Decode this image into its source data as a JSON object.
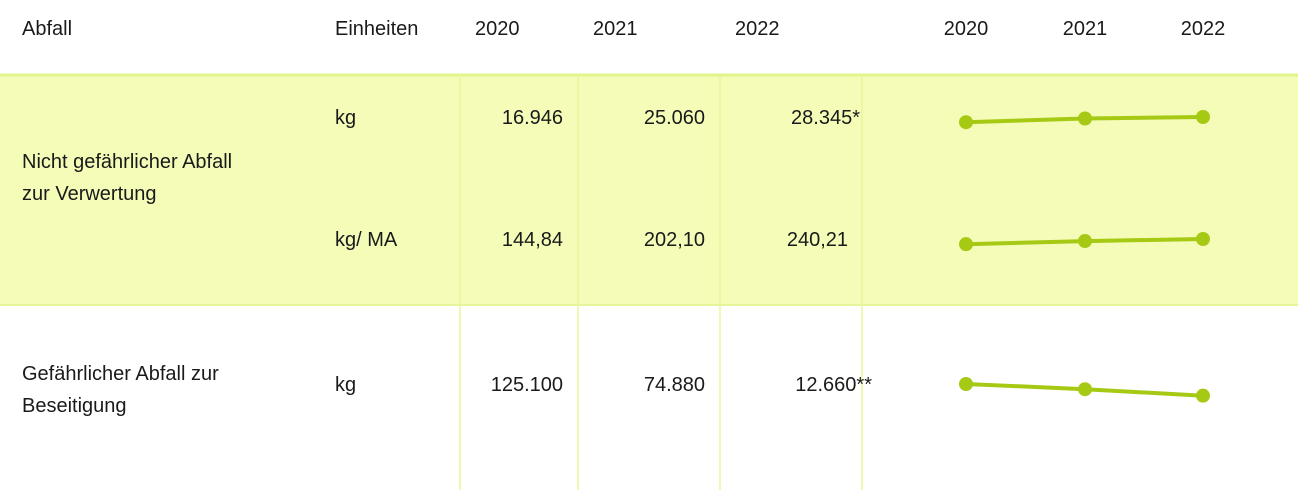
{
  "table": {
    "header": [
      "Abfall",
      "Einheiten",
      "2020",
      "2021",
      "2022"
    ],
    "trend_header": [
      "2020",
      "2021",
      "2022"
    ],
    "groups": [
      {
        "label": "Nicht gefährlicher Abfall zur Verwertung",
        "rows": [
          {
            "unit": "kg",
            "values": [
              16946,
              25060,
              28345
            ],
            "value_labels": [
              "16.946",
              "25.060",
              "28.345*"
            ]
          },
          {
            "unit": "kg/ MA",
            "values": [
              144.84,
              202.1,
              240.21
            ],
            "value_labels": [
              "144,84",
              "202,10",
              "240,21"
            ]
          }
        ]
      },
      {
        "label": "Gefährlicher Abfall zur Beseitigung",
        "rows": [
          {
            "unit": "kg",
            "values": [
              125100,
              74880,
              12660
            ],
            "value_labels": [
              "125.100",
              "74.880",
              "12.660**"
            ]
          }
        ]
      }
    ],
    "line_color": "#a6c914",
    "band_color": "#f4fcb8"
  }
}
